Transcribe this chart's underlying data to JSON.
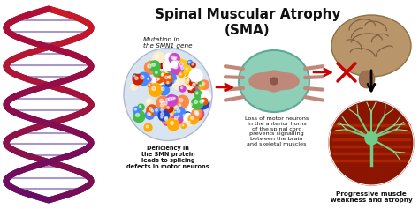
{
  "title_line1": "Spinal Muscular Atrophy",
  "title_line2": "(SMA)",
  "title_fontsize": 11,
  "title_fontstyle": "bold",
  "bg_color": "#ffffff",
  "label1": "Mutation in\nthe SMN1 gene",
  "label2": "Deficiency in\nthe SMN protein\nleads to splicing\ndefects in motor neurons",
  "label3": "Loss of motor neurons\nin the anterior horns\nof the spinal cord\nprevents signalling\nbetween the brain\nand skeletal muscles",
  "label4": "Progressive muscle\nweakness and atrophy",
  "arrow_color": "#cc0000",
  "text_color": "#111111",
  "dna_color1": "#7b3f7a",
  "dna_color2": "#a04060",
  "figsize": [
    4.74,
    2.37
  ],
  "dpi": 100
}
